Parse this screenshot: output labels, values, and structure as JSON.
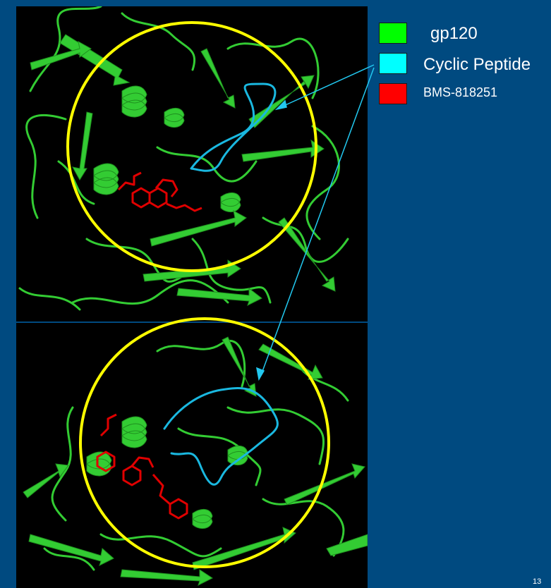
{
  "legend": {
    "items": [
      {
        "label": "gp120",
        "color": "#00ff00"
      },
      {
        "label": "Cyclic Peptide",
        "color": "#00ffff"
      },
      {
        "label": "BMS-818251",
        "color": "#ff0000"
      }
    ]
  },
  "colors": {
    "background": "#004a80",
    "protein": "#33cc33",
    "protein_highlight": "#66e066",
    "peptide": "#1ab8e0",
    "ligand": "#e00000",
    "circle": "#ffff00",
    "arrow": "#22c8f0"
  },
  "page_number": "13"
}
